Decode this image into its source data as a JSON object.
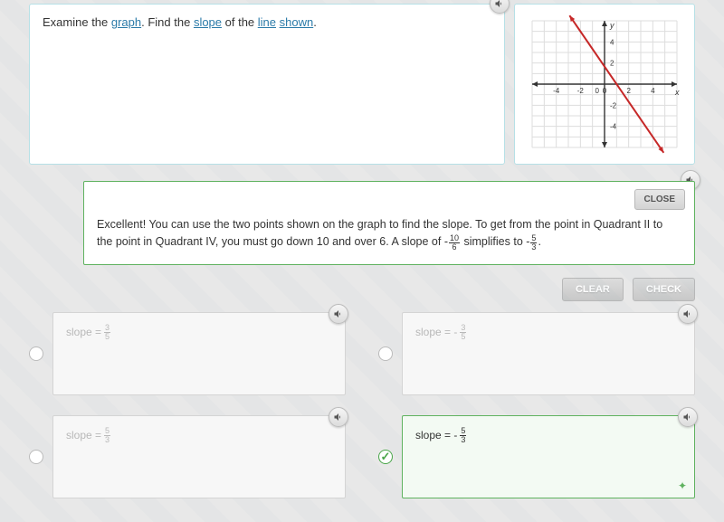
{
  "question": {
    "parts": [
      "Examine the ",
      "graph",
      ". Find the ",
      "slope",
      " of the ",
      "line",
      " ",
      "shown",
      "."
    ],
    "link_color": "#2a7aa8"
  },
  "graph": {
    "xlim": [
      -6,
      6
    ],
    "ylim": [
      -6,
      6
    ],
    "xticks": [
      -4,
      -2,
      0,
      2,
      4
    ],
    "yticks": [
      -4,
      -2,
      2,
      4
    ],
    "x_axis_label": "x",
    "y_axis_label": "y",
    "grid_color": "#dddddd",
    "axis_color": "#333333",
    "line_color": "#c62828",
    "line_points": [
      [
        -2,
        5
      ],
      [
        4,
        -5
      ]
    ],
    "background": "#ffffff"
  },
  "feedback": {
    "close_label": "CLOSE",
    "text_prefix": "Excellent! You can use the two points shown on the graph to find the slope. To get from the point in Quadrant II to the point in Quadrant IV, you must go down 10 and over 6. A slope of -",
    "frac1_num": "10",
    "frac1_den": "6",
    "text_mid": " simplifies to -",
    "frac2_num": "5",
    "frac2_den": "3",
    "text_suffix": "."
  },
  "actions": {
    "clear": "CLEAR",
    "check": "CHECK"
  },
  "choices": [
    {
      "prefix": "slope = ",
      "sign": "",
      "num": "3",
      "den": "5",
      "selected": false,
      "correct": false
    },
    {
      "prefix": "slope = ",
      "sign": "-",
      "num": "3",
      "den": "5",
      "selected": false,
      "correct": false
    },
    {
      "prefix": "slope = ",
      "sign": "",
      "num": "5",
      "den": "3",
      "selected": false,
      "correct": false
    },
    {
      "prefix": "slope = ",
      "sign": "-",
      "num": "5",
      "den": "3",
      "selected": true,
      "correct": true
    }
  ],
  "colors": {
    "panel_border": "#b6e0e6",
    "correct_border": "#5fb25f",
    "page_bg": "#e8e8e8"
  }
}
